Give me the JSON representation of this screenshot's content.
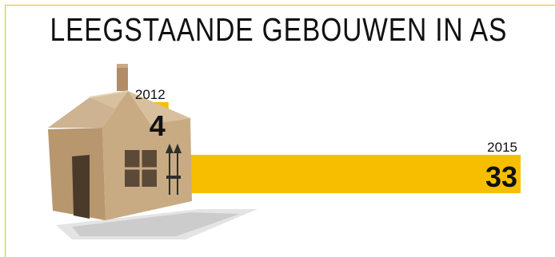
{
  "title": "LEEGSTAANDE GEBOUWEN IN AS",
  "colors": {
    "bar": "#f7be00",
    "frame": "#f2c200",
    "text": "#111111"
  },
  "icon": "cardboard-house-icon",
  "chart_data": {
    "type": "bar",
    "orientation": "horizontal",
    "title": "LEEGSTAANDE GEBOUWEN IN AS",
    "categories": [
      "2012",
      "2015"
    ],
    "values": [
      4,
      33
    ],
    "xlim": [
      0,
      33
    ],
    "grid": false
  }
}
